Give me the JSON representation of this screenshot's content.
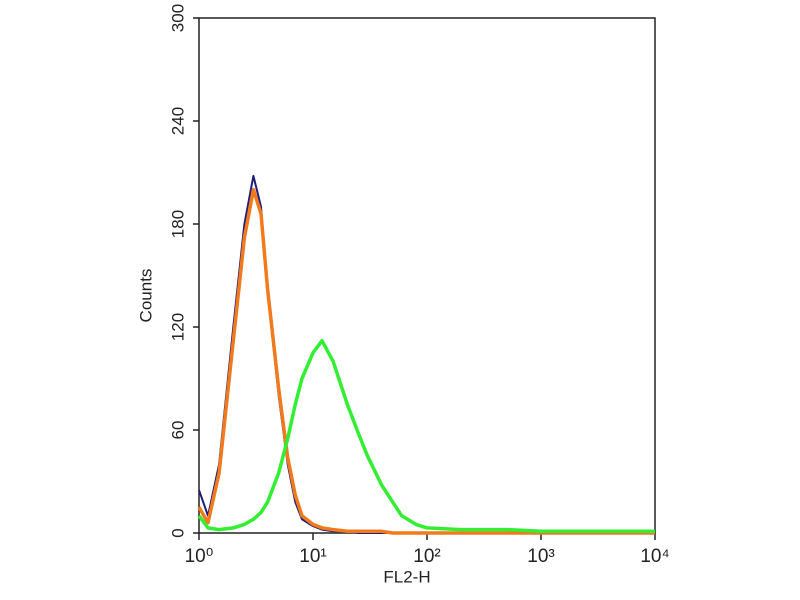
{
  "chart_data": {
    "type": "line",
    "x_label": "FL2-H",
    "y_label": "Counts",
    "x": [
      1,
      1.2,
      1.5,
      2,
      2.5,
      3,
      3.5,
      4,
      5,
      6,
      7,
      8,
      10,
      12,
      15,
      20,
      25,
      30,
      40,
      50,
      60,
      80,
      100,
      200,
      500,
      1000,
      10000
    ],
    "series": [
      {
        "color": "#1f1f7a",
        "values": [
          25,
          10,
          40,
          120,
          180,
          208,
          190,
          140,
          80,
          40,
          18,
          8,
          4,
          2,
          1,
          1,
          0,
          0,
          0,
          0,
          0,
          0,
          0,
          0,
          0,
          0,
          0
        ]
      },
      {
        "color": "#f07a1c",
        "values": [
          15,
          6,
          35,
          112,
          172,
          200,
          186,
          142,
          84,
          44,
          22,
          10,
          5,
          3,
          2,
          1,
          1,
          1,
          1,
          0,
          0,
          0,
          0,
          0,
          0,
          0,
          0
        ]
      },
      {
        "color": "#33ee33",
        "values": [
          10,
          3,
          2,
          3,
          5,
          8,
          12,
          18,
          35,
          55,
          75,
          90,
          105,
          112,
          100,
          75,
          58,
          45,
          28,
          18,
          10,
          5,
          3,
          2,
          2,
          1,
          1
        ]
      }
    ],
    "x_log": true,
    "xlim": [
      1,
      10000
    ],
    "xticks": [
      {
        "value": 1,
        "label": "10⁰"
      },
      {
        "value": 10,
        "label": "10¹"
      },
      {
        "value": 100,
        "label": "10²"
      },
      {
        "value": 1000,
        "label": "10³"
      },
      {
        "value": 10000,
        "label": "10⁴"
      }
    ],
    "ylim": [
      0,
      300
    ],
    "yticks": [
      0,
      60,
      120,
      180,
      240,
      300
    ]
  }
}
